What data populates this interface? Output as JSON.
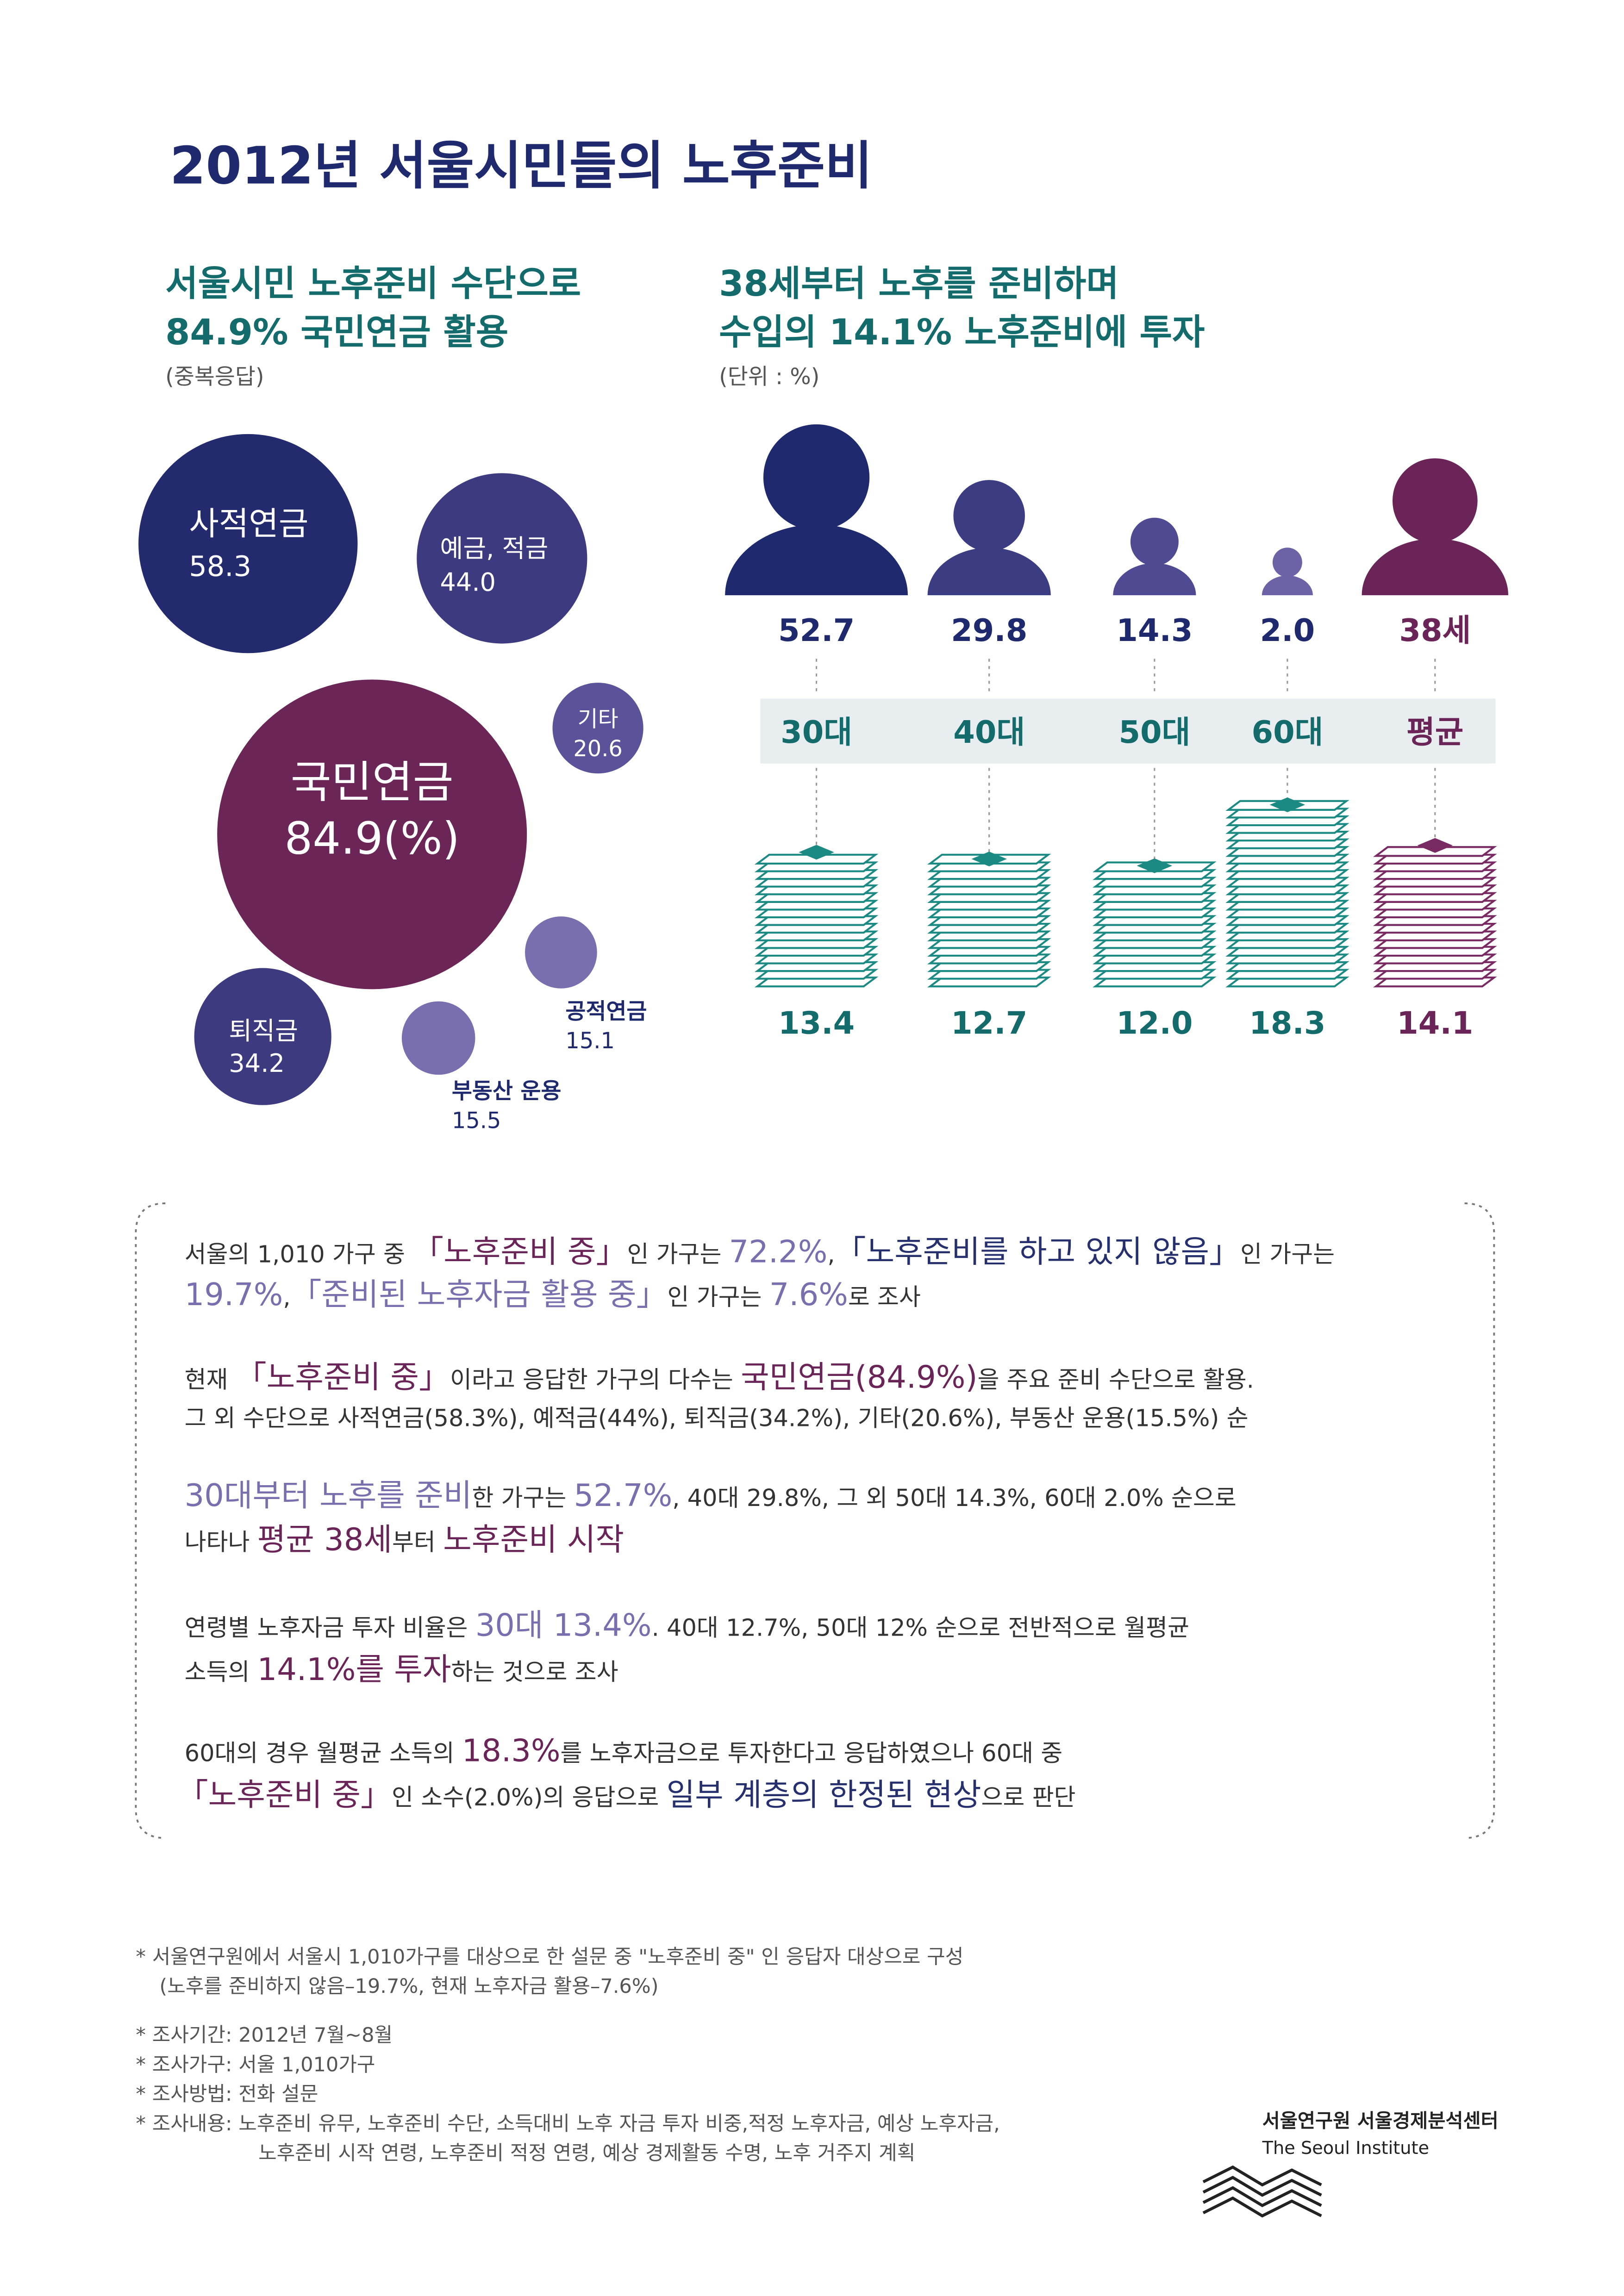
{
  "title": "2012년 서울시민들의 노후준비",
  "chart_data": [
    {
      "type": "bubble",
      "title": [
        "서울시민 노후준비 수단으로",
        "84.9% 국민연금 활용"
      ],
      "subtitle": "(중복응답)",
      "categories": [
        "국민연금",
        "사적연금",
        "예금, 적금",
        "퇴직금",
        "기타",
        "부동산 운용",
        "공적연금"
      ],
      "values": [
        84.9,
        58.3,
        44.0,
        34.2,
        20.6,
        15.5,
        15.1
      ],
      "value_labels": [
        "84.9(%)",
        "58.3",
        "44.0",
        "34.2",
        "20.6",
        "15.5",
        "15.1"
      ],
      "colors": [
        "#6b2557",
        "#232a6e",
        "#3d3a80",
        "#3d3a80",
        "#5b539a",
        "#7a6fae",
        "#7a6fae"
      ]
    },
    {
      "type": "people-stack",
      "title": [
        "38세부터 노후를 준비하며",
        "수입의 14.1% 노후준비에 투자"
      ],
      "subtitle": "(단위 : %)",
      "categories": [
        "30대",
        "40대",
        "50대",
        "60대",
        "평균"
      ],
      "start": {
        "values": [
          52.7,
          29.8,
          14.3,
          2.0,
          38
        ],
        "value_labels": [
          "52.7",
          "29.8",
          "14.3",
          "2.0",
          "38세"
        ]
      },
      "invest": {
        "values": [
          13.4,
          12.7,
          12.0,
          18.3,
          14.1
        ],
        "value_labels": [
          "13.4",
          "12.7",
          "12.0",
          "18.3",
          "14.1"
        ]
      },
      "person_colors": [
        "#1f2a6e",
        "#3b3c82",
        "#4f4a92",
        "#6c62a6",
        "#6b2457"
      ],
      "stack_colors": [
        "#1b8a83",
        "#1b8a83",
        "#1b8a83",
        "#1b8a83",
        "#7a2a62"
      ],
      "label_colors": [
        "#1f2a6e",
        "#1f2a6e",
        "#1f2a6e",
        "#1f2a6e",
        "#6b2457"
      ],
      "category_colors": [
        "#146b6b",
        "#146b6b",
        "#146b6b",
        "#146b6b",
        "#6b2457"
      ]
    }
  ],
  "paragraphs": [
    [
      [
        {
          "text": "서울의 1,010 가구 중 "
        },
        {
          "text": "「노후준비 중」",
          "color": "#6b2457"
        },
        {
          "text": "인 가구는 "
        },
        {
          "text": "72.2%",
          "color": "#7a6fae"
        },
        {
          "text": ","
        },
        {
          "text": "「노후준비를 하고 있지 않음」",
          "color": "#27306f"
        },
        {
          "text": "인 가구는"
        }
      ],
      [
        {
          "text": "19.7%",
          "color": "#7a6fae"
        },
        {
          "text": ","
        },
        {
          "text": "「준비된 노후자금 활용 중」",
          "color": "#7a6fae"
        },
        {
          "text": "인 가구는 "
        },
        {
          "text": "7.6%",
          "color": "#7a6fae"
        },
        {
          "text": "로 조사"
        }
      ]
    ],
    [
      [
        {
          "text": "현재 "
        },
        {
          "text": "「노후준비 중」",
          "color": "#6b2457"
        },
        {
          "text": "이라고 응답한 가구의 다수는 "
        },
        {
          "text": "국민연금(84.9%)",
          "color": "#6b2457"
        },
        {
          "text": "을 주요 준비 수단으로 활용."
        }
      ],
      [
        {
          "text": "그 외 수단으로 사적연금(58.3%), 예적금(44%), 퇴직금(34.2%), 기타(20.6%), 부동산 운용(15.5%) 순"
        }
      ]
    ],
    [
      [
        {
          "text": "30대부터 노후를 준비",
          "color": "#7a6fae"
        },
        {
          "text": "한 가구는 "
        },
        {
          "text": "52.7%",
          "color": "#7a6fae"
        },
        {
          "text": ", 40대 29.8%, 그 외 50대 14.3%, 60대 2.0% 순으로"
        }
      ],
      [
        {
          "text": "나타나 "
        },
        {
          "text": "평균 38세",
          "color": "#6b2457"
        },
        {
          "text": "부터 "
        },
        {
          "text": "노후준비 시작",
          "color": "#6b2457"
        }
      ]
    ],
    [
      [
        {
          "text": "연령별 노후자금 투자 비율은 "
        },
        {
          "text": "30대 13.4%",
          "color": "#7a6fae"
        },
        {
          "text": ". 40대 12.7%, 50대 12% 순으로 전반적으로 월평균"
        }
      ],
      [
        {
          "text": "소득의 "
        },
        {
          "text": "14.1%를 투자",
          "color": "#6b2457"
        },
        {
          "text": "하는 것으로 조사"
        }
      ]
    ],
    [
      [
        {
          "text": "60대의 경우 월평균 소득의 "
        },
        {
          "text": "18.3%",
          "color": "#6b2457"
        },
        {
          "text": "를 노후자금으로 투자한다고 응답하였으나 60대 중"
        }
      ],
      [
        {
          "text": "「노후준비 중」",
          "color": "#6b2457"
        },
        {
          "text": "인 소수(2.0%)의 응답으로 "
        },
        {
          "text": "일부 계층의 한정된 현상",
          "color": "#27306f"
        },
        {
          "text": "으로 판단"
        }
      ]
    ]
  ],
  "notes": [
    [
      "* 서울연구원에서 서울시 1,010가구를 대상으로 한 설문 중 \"노후준비 중\" 인 응답자 대상으로 구성",
      "(노후를 준비하지 않음–19.7%, 현재 노후자금 활용–7.6%)"
    ],
    [
      "* 조사기간: 2012년 7월~8월"
    ],
    [
      "* 조사가구: 서울 1,010가구"
    ],
    [
      "* 조사방법: 전화 설문"
    ],
    [
      "* 조사내용: 노후준비 유무, 노후준비 수단, 소득대비 노후 자금 투자 비중,적정 노후자금, 예상 노후자금,",
      "노후준비 시작 연령, 노후준비 적정 연령, 예상 경제활동 수명, 노후 거주지 계획"
    ]
  ],
  "logo": {
    "name": "서울연구원 서울경제분석센터",
    "subtitle": "The Seoul Institute"
  }
}
